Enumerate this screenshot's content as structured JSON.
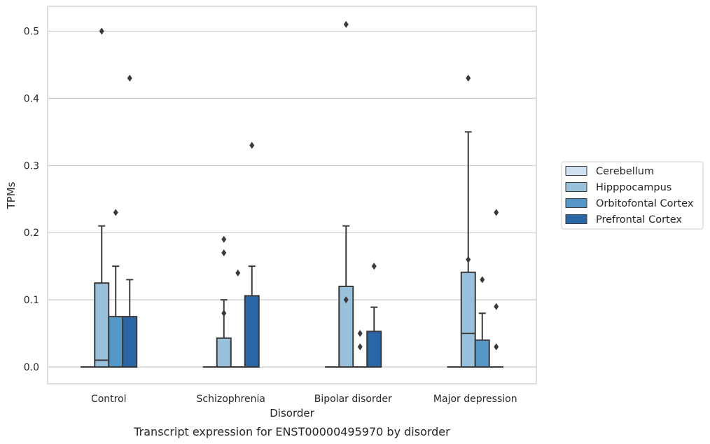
{
  "chart_data": {
    "type": "boxplot",
    "caption": "Transcript expression for ENST00000495970 by disorder",
    "xlabel": "Disorder",
    "ylabel": "TPMs",
    "ylim": [
      -0.025,
      0.537
    ],
    "yticks": [
      0.0,
      0.1,
      0.2,
      0.3,
      0.4,
      0.5
    ],
    "ytick_labels": [
      "0.0",
      "0.1",
      "0.2",
      "0.3",
      "0.4",
      "0.5"
    ],
    "grid": true,
    "legend_position": "right",
    "categories": [
      "Control",
      "Schizophrenia",
      "Bipolar disorder",
      "Major depression"
    ],
    "series": [
      {
        "name": "Cerebellum",
        "color": "#d0e2f2",
        "boxes": [
          {
            "q1": 0,
            "median": 0,
            "q3": 0,
            "whisker_low": 0,
            "whisker_high": 0,
            "outliers": []
          },
          {
            "q1": 0,
            "median": 0,
            "q3": 0,
            "whisker_low": 0,
            "whisker_high": 0,
            "outliers": []
          },
          {
            "q1": 0,
            "median": 0,
            "q3": 0,
            "whisker_low": 0,
            "whisker_high": 0,
            "outliers": []
          },
          {
            "q1": 0,
            "median": 0,
            "q3": 0,
            "whisker_low": 0,
            "whisker_high": 0,
            "outliers": []
          }
        ]
      },
      {
        "name": "Hipppocampus",
        "color": "#9ac1db",
        "boxes": [
          {
            "q1": 0,
            "median": 0.01,
            "q3": 0.125,
            "whisker_low": 0,
            "whisker_high": 0.21,
            "outliers": [
              0.5
            ]
          },
          {
            "q1": 0,
            "median": 0,
            "q3": 0.043,
            "whisker_low": 0,
            "whisker_high": 0.1,
            "outliers": [
              0.08,
              0.17,
              0.19
            ]
          },
          {
            "q1": 0,
            "median": 0,
            "q3": 0.12,
            "whisker_low": 0,
            "whisker_high": 0.21,
            "outliers": [
              0.1,
              0.51
            ]
          },
          {
            "q1": 0,
            "median": 0.05,
            "q3": 0.141,
            "whisker_low": 0,
            "whisker_high": 0.35,
            "outliers": [
              0.16,
              0.43
            ]
          }
        ]
      },
      {
        "name": "Orbitofontal Cortex",
        "color": "#5598c8",
        "boxes": [
          {
            "q1": 0,
            "median": 0,
            "q3": 0.075,
            "whisker_low": 0,
            "whisker_high": 0.15,
            "outliers": [
              0.23
            ]
          },
          {
            "q1": 0,
            "median": 0,
            "q3": 0,
            "whisker_low": 0,
            "whisker_high": 0,
            "outliers": [
              0.14
            ]
          },
          {
            "q1": 0,
            "median": 0,
            "q3": 0,
            "whisker_low": 0,
            "whisker_high": 0,
            "outliers": [
              0.03,
              0.05
            ]
          },
          {
            "q1": 0,
            "median": 0,
            "q3": 0.04,
            "whisker_low": 0,
            "whisker_high": 0.08,
            "outliers": [
              0.13
            ]
          }
        ]
      },
      {
        "name": "Prefrontal Cortex",
        "color": "#2a66a5",
        "boxes": [
          {
            "q1": 0,
            "median": 0,
            "q3": 0.075,
            "whisker_low": 0,
            "whisker_high": 0.13,
            "outliers": [
              0.43
            ]
          },
          {
            "q1": 0,
            "median": 0,
            "q3": 0.106,
            "whisker_low": 0,
            "whisker_high": 0.15,
            "outliers": [
              0.33
            ]
          },
          {
            "q1": 0,
            "median": 0,
            "q3": 0.053,
            "whisker_low": 0,
            "whisker_high": 0.089,
            "outliers": [
              0.15
            ]
          },
          {
            "q1": 0,
            "median": 0,
            "q3": 0,
            "whisker_low": 0,
            "whisker_high": 0,
            "outliers": [
              0.03,
              0.09,
              0.23
            ]
          }
        ]
      }
    ]
  }
}
